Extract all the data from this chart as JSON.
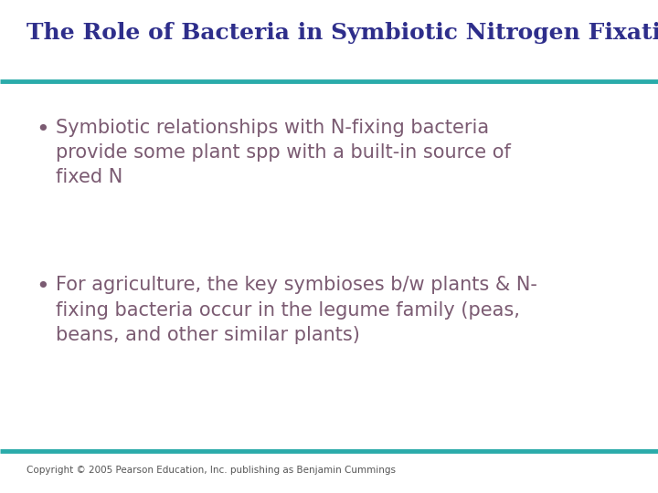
{
  "title": "The Role of Bacteria in Symbiotic Nitrogen Fixation",
  "title_color": "#2E2E8B",
  "title_fontsize": 18,
  "title_fontstyle": "normal",
  "title_fontfamily": "serif",
  "title_fontweight": "bold",
  "line_color": "#2AABAA",
  "line_thickness": 3.5,
  "bullet_color": "#7B5B72",
  "bullet_text_color": "#7B5B72",
  "bullet_fontsize": 15,
  "bullet_fontfamily": "sans-serif",
  "bullets": [
    "Symbiotic relationships with N-fixing bacteria\nprovide some plant spp with a built-in source of\nfixed N",
    "For agriculture, the key symbioses b/w plants & N-\nfixing bacteria occur in the legume family (peas,\nbeans, and other similar plants)"
  ],
  "copyright": "Copyright © 2005 Pearson Education, Inc. publishing as Benjamin Cummings",
  "copyright_fontsize": 7.5,
  "copyright_color": "#555555",
  "bg_color": "#FFFFFF",
  "fig_width": 7.2,
  "fig_height": 5.4,
  "dpi": 100
}
